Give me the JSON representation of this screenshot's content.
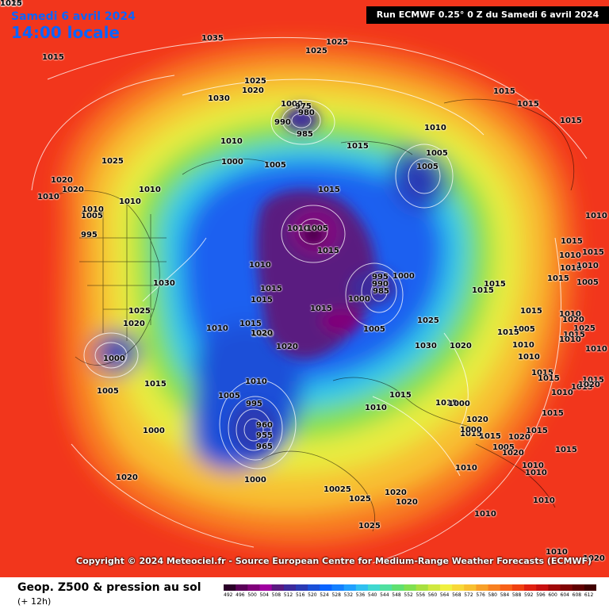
{
  "header": {
    "date": "Samedi 6 avril 2024",
    "time": "14:00 locale",
    "run_info": "Run ECMWF 0.25° 0 Z du Samedi 6 avril 2024"
  },
  "copyright": "Copyright © 2024 Meteociel.fr - Source European Centre for Medium-Range Weather Forecasts (ECMWF)",
  "footer": {
    "title": "Geop. Z500 & pression au sol",
    "subtitle": "(+ 12h)"
  },
  "scale": {
    "values": [
      "492",
      "496",
      "500",
      "504",
      "508",
      "512",
      "516",
      "520",
      "524",
      "528",
      "532",
      "536",
      "540",
      "544",
      "548",
      "552",
      "556",
      "560",
      "564",
      "568",
      "572",
      "576",
      "580",
      "584",
      "588",
      "592",
      "596",
      "600",
      "604",
      "608",
      "612"
    ],
    "colors": [
      "#2a0028",
      "#5a0058",
      "#80007a",
      "#a000a0",
      "#5a1a80",
      "#3c2a9c",
      "#2a3ab4",
      "#1a50d8",
      "#0a64ff",
      "#1480ff",
      "#20a0ff",
      "#30c0f0",
      "#40d8d0",
      "#50e0a0",
      "#60e070",
      "#80e050",
      "#a8e040",
      "#d0e840",
      "#f0f040",
      "#f8d838",
      "#f8c030",
      "#f8a028",
      "#f88020",
      "#f86018",
      "#f04010",
      "#e02010",
      "#c81010",
      "#a00808",
      "#800404",
      "#600000",
      "#400000"
    ]
  },
  "pressure_labels": [
    {
      "text": "1035"
    },
    {
      "text": "1025"
    },
    {
      "text": "1025"
    },
    {
      "text": "1015"
    },
    {
      "text": "1025"
    },
    {
      "text": "1020"
    },
    {
      "text": "1030"
    },
    {
      "text": "1000"
    },
    {
      "text": "980"
    },
    {
      "text": "975"
    },
    {
      "text": "990"
    },
    {
      "text": "985"
    },
    {
      "text": "1010"
    },
    {
      "text": "1015"
    },
    {
      "text": "1025"
    },
    {
      "text": "1000"
    },
    {
      "text": "1005"
    },
    {
      "text": "1010"
    },
    {
      "text": "1005"
    },
    {
      "text": "1005"
    },
    {
      "text": "1015"
    },
    {
      "text": "1015"
    },
    {
      "text": "1015"
    },
    {
      "text": "1015"
    },
    {
      "text": "1020"
    },
    {
      "text": "1010"
    },
    {
      "text": "1020"
    },
    {
      "text": "1010"
    },
    {
      "text": "1005"
    },
    {
      "text": "1010"
    },
    {
      "text": "1010"
    },
    {
      "text": "995"
    },
    {
      "text": "1015"
    },
    {
      "text": "1010"
    },
    {
      "text": "1005"
    },
    {
      "text": "1010"
    },
    {
      "text": "1030"
    },
    {
      "text": "1025"
    },
    {
      "text": "1020"
    },
    {
      "text": "1015"
    },
    {
      "text": "1015"
    },
    {
      "text": "1020"
    },
    {
      "text": "995"
    },
    {
      "text": "990"
    },
    {
      "text": "985"
    },
    {
      "text": "1000"
    },
    {
      "text": "1000"
    },
    {
      "text": "1015"
    },
    {
      "text": "1015"
    },
    {
      "text": "1020"
    },
    {
      "text": "1020"
    },
    {
      "text": "1010"
    },
    {
      "text": "1005"
    },
    {
      "text": "1025"
    },
    {
      "text": "1030"
    },
    {
      "text": "1020"
    },
    {
      "text": "1000"
    },
    {
      "text": "1005"
    },
    {
      "text": "1015"
    },
    {
      "text": "1010"
    },
    {
      "text": "1005"
    },
    {
      "text": "995"
    },
    {
      "text": "960"
    },
    {
      "text": "955"
    },
    {
      "text": "965"
    },
    {
      "text": "1000"
    },
    {
      "text": "1015"
    },
    {
      "text": "1015"
    },
    {
      "text": "1010"
    },
    {
      "text": "1020"
    },
    {
      "text": "1015"
    },
    {
      "text": "1020"
    },
    {
      "text": "1000"
    },
    {
      "text": "10025"
    },
    {
      "text": "1025"
    },
    {
      "text": "1020"
    },
    {
      "text": "1020"
    },
    {
      "text": "1025"
    },
    {
      "text": "1010"
    },
    {
      "text": "1010"
    },
    {
      "text": "1020"
    },
    {
      "text": "1015"
    },
    {
      "text": "1015"
    },
    {
      "text": "1015"
    },
    {
      "text": "1010"
    },
    {
      "text": "1015"
    },
    {
      "text": "1010"
    },
    {
      "text": "1010"
    },
    {
      "text": "1010"
    },
    {
      "text": "1015"
    },
    {
      "text": "1010"
    },
    {
      "text": "1005"
    },
    {
      "text": "1015"
    },
    {
      "text": "1020"
    },
    {
      "text": "1025"
    },
    {
      "text": "1015"
    },
    {
      "text": "1015"
    },
    {
      "text": "1005"
    },
    {
      "text": "1015"
    },
    {
      "text": "1010"
    },
    {
      "text": "1010"
    },
    {
      "text": "1010"
    },
    {
      "text": "1010"
    },
    {
      "text": "1015"
    },
    {
      "text": "1015"
    },
    {
      "text": "1010"
    },
    {
      "text": "1015"
    },
    {
      "text": "1015"
    },
    {
      "text": "1020"
    },
    {
      "text": "1015"
    },
    {
      "text": "1010"
    },
    {
      "text": "1015"
    },
    {
      "text": "1010"
    },
    {
      "text": "1005"
    },
    {
      "text": "1020"
    },
    {
      "text": "1015"
    },
    {
      "text": "1010"
    },
    {
      "text": "1000"
    },
    {
      "text": "1000"
    },
    {
      "text": "1020"
    },
    {
      "text": "1010"
    },
    {
      "text": "1010"
    },
    {
      "text": "1020"
    },
    {
      "text": "1015"
    }
  ]
}
